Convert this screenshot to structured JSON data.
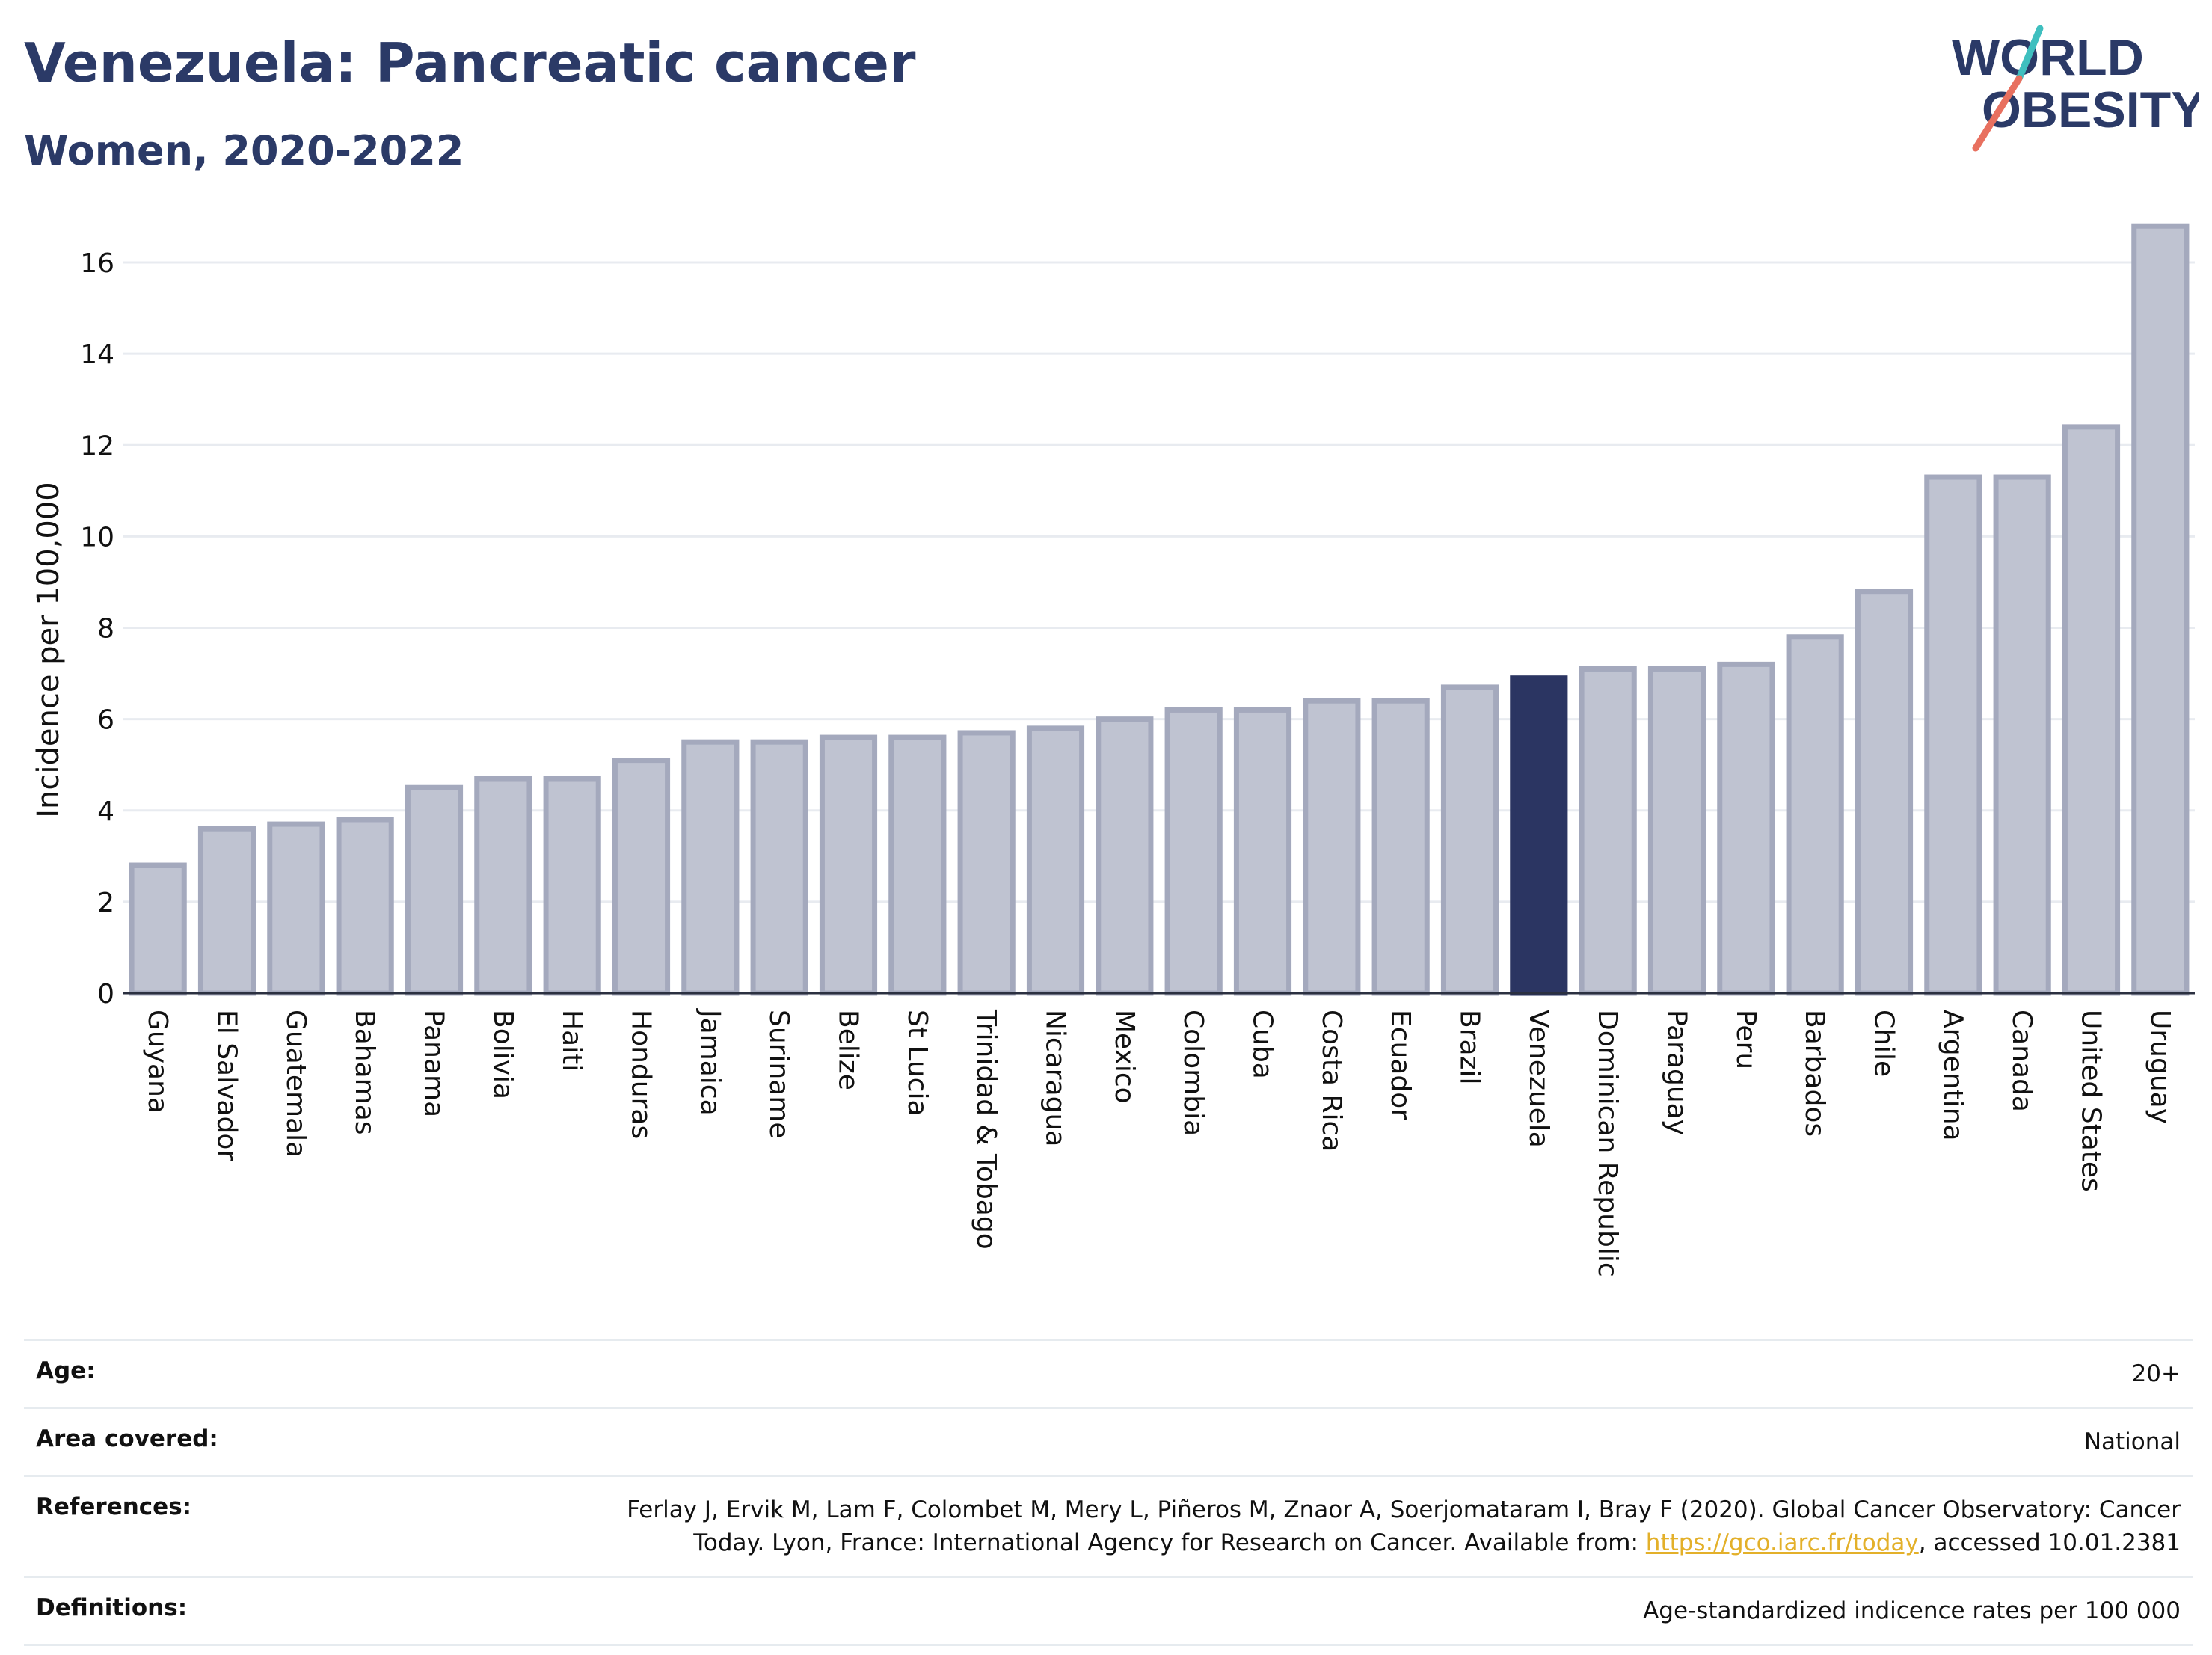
{
  "header": {
    "title": "Venezuela: Pancreatic cancer",
    "subtitle": "Women, 2020-2022"
  },
  "logo": {
    "line1": "WORLD",
    "line2": "OBESITY",
    "slash_colors": [
      "#3fbfbf",
      "#e8705f"
    ],
    "text_color": "#2b3a67"
  },
  "chart_data": {
    "type": "bar",
    "title": "Venezuela: Pancreatic cancer",
    "subtitle": "Women, 2020-2022",
    "ylabel": "Incidence per 100,000",
    "xlabel": "",
    "ylim": [
      0,
      17
    ],
    "yticks": [
      0,
      2,
      4,
      6,
      8,
      10,
      12,
      14,
      16
    ],
    "grid": true,
    "legend": "none",
    "highlight": "Venezuela",
    "colors": {
      "bar": "#bfc3d1",
      "bar_edge": "#a4a9bd",
      "highlight": "#2b3562"
    },
    "categories": [
      "Guyana",
      "El Salvador",
      "Guatemala",
      "Bahamas",
      "Panama",
      "Bolivia",
      "Haiti",
      "Honduras",
      "Jamaica",
      "Suriname",
      "Belize",
      "St Lucia",
      "Trinidad & Tobago",
      "Nicaragua",
      "Mexico",
      "Colombia",
      "Cuba",
      "Costa Rica",
      "Ecuador",
      "Brazil",
      "Venezuela",
      "Dominican Republic",
      "Paraguay",
      "Peru",
      "Barbados",
      "Chile",
      "Argentina",
      "Canada",
      "United States",
      "Uruguay"
    ],
    "values": [
      2.8,
      3.6,
      3.7,
      3.8,
      4.5,
      4.7,
      4.7,
      5.1,
      5.5,
      5.5,
      5.6,
      5.6,
      5.7,
      5.8,
      6.0,
      6.2,
      6.2,
      6.4,
      6.4,
      6.7,
      6.9,
      7.1,
      7.1,
      7.2,
      7.8,
      8.8,
      11.3,
      11.3,
      12.4,
      16.8
    ]
  },
  "meta": {
    "age_label": "Age:",
    "age_value": "20+",
    "area_label": "Area covered:",
    "area_value": "National",
    "references_label": "References:",
    "references_text": "Ferlay J, Ervik M, Lam F, Colombet M, Mery L, Piñeros M, Znaor A, Soerjomataram I, Bray F (2020). Global Cancer Observatory: Cancer Today. Lyon, France: International Agency for Research on Cancer. Available from: ",
    "references_link": "https://gco.iarc.fr/today",
    "references_tail": ", accessed 10.01.2381",
    "definitions_label": "Definitions:",
    "definitions_value": "Age-standardized indicence rates per 100 000"
  }
}
